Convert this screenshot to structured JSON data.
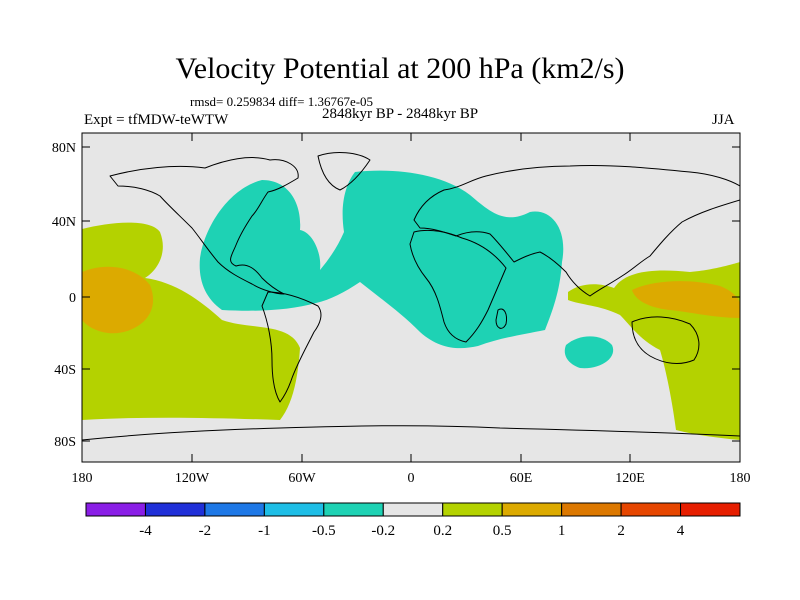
{
  "title": "Velocity Potential at 200 hPa (km2/s)",
  "stats": "rmsd= 0.259834 diff= 1.36767e-05",
  "expt": "Expt = tfMDW-teWTW",
  "period": "2848kyr BP - 2848kyr BP",
  "season": "JJA",
  "axes": {
    "lat_labels": [
      "80N",
      "40N",
      "0",
      "40S",
      "80S"
    ],
    "lon_labels": [
      "180",
      "120W",
      "60W",
      "0",
      "60E",
      "120E",
      "180"
    ]
  },
  "colorbar": {
    "labels": [
      "-4",
      "-2",
      "-1",
      "-0.5",
      "-0.2",
      "0.2",
      "0.5",
      "1",
      "2",
      "4"
    ],
    "colors": [
      "#8a1ee6",
      "#2030d8",
      "#1e78e6",
      "#1ebee6",
      "#1ed2b4",
      "#e6e6e6",
      "#b4d200",
      "#dcaa00",
      "#dc7800",
      "#e64600",
      "#e61e00"
    ]
  },
  "map_colors": {
    "neutral": "#e6e6e6",
    "negative": "#1ed2b4",
    "positive": "#b4d200",
    "strong_positive": "#dcaa00"
  }
}
